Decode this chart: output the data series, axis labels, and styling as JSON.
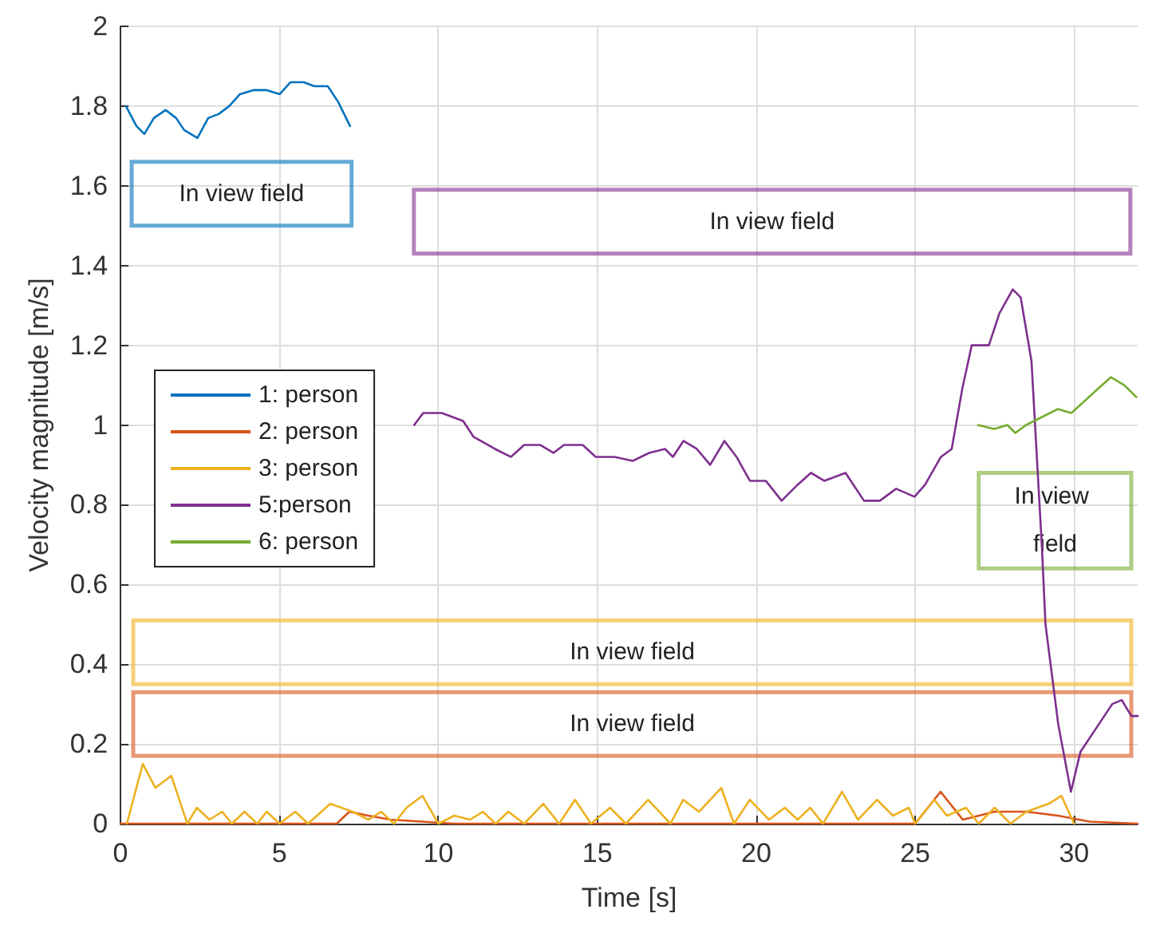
{
  "chart_data": {
    "type": "line",
    "xlabel": "Time [s]",
    "ylabel": "Velocity magnitude [m/s]",
    "xlim": [
      0,
      32
    ],
    "xticks": [
      0,
      5,
      10,
      15,
      20,
      25,
      30
    ],
    "ylim": [
      0,
      2
    ],
    "yticks": [
      0,
      0.2,
      0.4,
      0.6,
      0.8,
      1,
      1.2,
      1.4,
      1.6,
      1.8,
      2
    ],
    "grid": true,
    "legend": "left",
    "line_style": "solid",
    "marker": "none",
    "series": [
      {
        "name": "1: person",
        "color": "#0072bd",
        "x": [
          0.17,
          0.5,
          0.75,
          1.05,
          1.42,
          1.75,
          2.0,
          2.42,
          2.76,
          3.09,
          3.42,
          3.76,
          4.18,
          4.6,
          5.01,
          5.35,
          5.76,
          6.1,
          6.52,
          6.85,
          7.22
        ],
        "values": [
          1.8,
          1.75,
          1.73,
          1.77,
          1.79,
          1.77,
          1.74,
          1.72,
          1.77,
          1.78,
          1.8,
          1.83,
          1.84,
          1.84,
          1.83,
          1.86,
          1.86,
          1.85,
          1.85,
          1.81,
          1.75
        ]
      },
      {
        "name": "2: person",
        "color": "#d95319",
        "x": [
          0,
          6.8,
          7.2,
          7.8,
          8.5,
          9.5,
          10.5,
          25.0,
          25.8,
          26.5,
          27.5,
          28.5,
          29.5,
          30.5,
          32
        ],
        "values": [
          0,
          0,
          0.03,
          0.02,
          0.01,
          0.005,
          0,
          0,
          0.08,
          0.01,
          0.03,
          0.03,
          0.02,
          0.005,
          0
        ]
      },
      {
        "name": "3: person",
        "color": "#edb120",
        "x": [
          0.2,
          0.7,
          1.1,
          1.6,
          2.1,
          2.4,
          2.8,
          3.2,
          3.5,
          3.9,
          4.3,
          4.6,
          5.0,
          5.5,
          5.9,
          6.6,
          7.3,
          7.8,
          8.2,
          8.6,
          9.0,
          9.5,
          10.0,
          10.5,
          11.0,
          11.4,
          11.8,
          12.2,
          12.7,
          13.3,
          13.8,
          14.3,
          14.8,
          15.4,
          15.9,
          16.6,
          17.3,
          17.7,
          18.2,
          18.9,
          19.3,
          19.8,
          20.4,
          20.9,
          21.3,
          21.7,
          22.1,
          22.7,
          23.2,
          23.8,
          24.3,
          24.8,
          25.0,
          25.6,
          26.0,
          26.6,
          27.0,
          27.5,
          28.0,
          28.5,
          29.2,
          29.6,
          30.0
        ],
        "values": [
          0,
          0.15,
          0.09,
          0.12,
          0,
          0.04,
          0.01,
          0.03,
          0,
          0.03,
          0,
          0.03,
          0,
          0.03,
          0,
          0.05,
          0.03,
          0.01,
          0.03,
          0,
          0.04,
          0.07,
          0,
          0.02,
          0.01,
          0.03,
          0,
          0.03,
          0,
          0.05,
          0,
          0.06,
          0,
          0.04,
          0,
          0.06,
          0,
          0.06,
          0.03,
          0.09,
          0,
          0.06,
          0.01,
          0.04,
          0.01,
          0.04,
          0,
          0.08,
          0.01,
          0.06,
          0.02,
          0.04,
          0,
          0.06,
          0.02,
          0.04,
          0,
          0.04,
          0,
          0.03,
          0.05,
          0.07,
          0
        ]
      },
      {
        "name": "5:person",
        "color": "#7e2f8e",
        "x": [
          9.24,
          9.52,
          10.11,
          10.78,
          11.11,
          11.78,
          12.28,
          12.7,
          13.2,
          13.62,
          13.95,
          14.54,
          14.95,
          15.54,
          16.12,
          16.63,
          17.13,
          17.38,
          17.71,
          18.13,
          18.55,
          19.0,
          19.38,
          19.8,
          20.3,
          20.8,
          21.3,
          21.72,
          22.14,
          22.81,
          23.39,
          23.89,
          24.4,
          24.98,
          25.31,
          25.81,
          26.15,
          26.48,
          26.78,
          27.32,
          27.65,
          28.07,
          28.32,
          28.66,
          28.99,
          29.1,
          29.5,
          29.9,
          30.2,
          30.7,
          31.2,
          31.5,
          31.8,
          32
        ],
        "values": [
          1.0,
          1.03,
          1.03,
          1.01,
          0.97,
          0.94,
          0.92,
          0.95,
          0.95,
          0.93,
          0.95,
          0.95,
          0.92,
          0.92,
          0.91,
          0.93,
          0.94,
          0.92,
          0.96,
          0.94,
          0.9,
          0.96,
          0.92,
          0.86,
          0.86,
          0.81,
          0.85,
          0.88,
          0.86,
          0.88,
          0.81,
          0.81,
          0.84,
          0.82,
          0.85,
          0.92,
          0.94,
          1.09,
          1.2,
          1.2,
          1.28,
          1.34,
          1.32,
          1.16,
          0.69,
          0.5,
          0.25,
          0.08,
          0.18,
          0.24,
          0.3,
          0.31,
          0.27,
          0.27
        ]
      },
      {
        "name": "6: person",
        "color": "#77ac30",
        "x": [
          26.98,
          27.48,
          27.9,
          28.15,
          28.49,
          28.99,
          29.49,
          29.91,
          30.33,
          30.74,
          31.16,
          31.58,
          31.96
        ],
        "values": [
          1.0,
          0.99,
          1.0,
          0.98,
          1.0,
          1.02,
          1.04,
          1.03,
          1.06,
          1.09,
          1.12,
          1.1,
          1.07
        ]
      }
    ],
    "annotations": [
      "In view field",
      "In view field",
      "In view field",
      "In view field",
      "In view field"
    ]
  }
}
